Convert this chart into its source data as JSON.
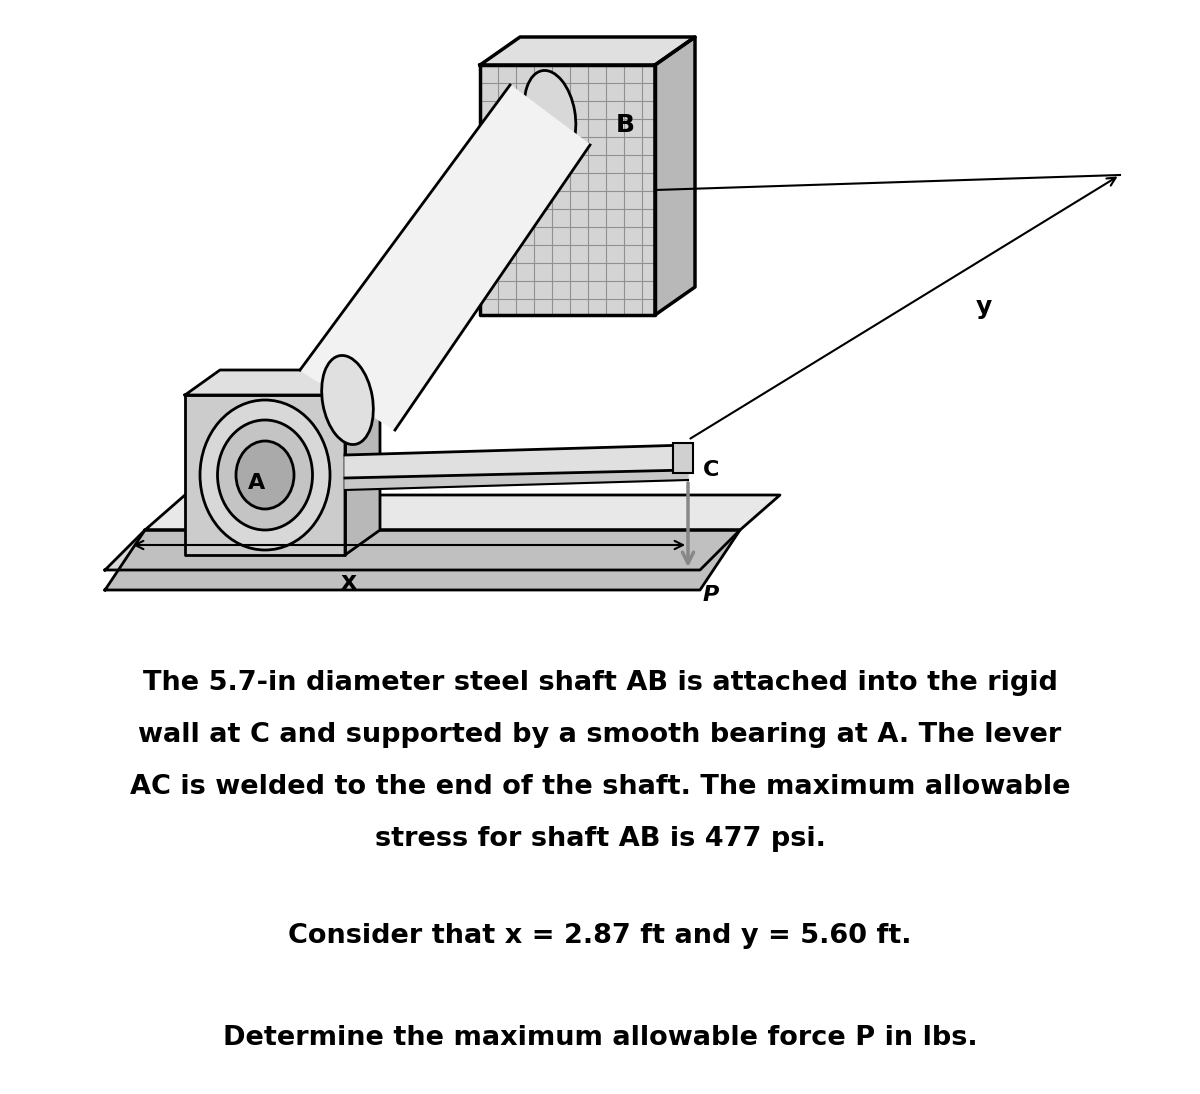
{
  "bg_color": "#ffffff",
  "line1": "The 5.7-in diameter steel shaft AB is attached into the rigid",
  "line2": "wall at C and supported by a smooth bearing at A. The lever",
  "line3": "AC is welded to the end of the shaft. The maximum allowable",
  "line4": "stress for shaft AB is 477 psi.",
  "line5": "Consider that x = 2.87 ft and y = 5.60 ft.",
  "line6": "Determine the maximum allowable force P in lbs.",
  "label_A": "A",
  "label_B": "B",
  "label_C": "C",
  "label_x": "x",
  "label_y": "y",
  "label_P": "P",
  "hatch_color": "#aaaaaa",
  "fill_front": "#cccccc",
  "fill_top": "#e0e0e0",
  "fill_right": "#b8b8b8",
  "shaft_fill": "#f0f0f0",
  "bearing_outer": "#d8d8d8",
  "bearing_mid": "#c0c0c0",
  "bearing_inner": "#a8a8a8"
}
